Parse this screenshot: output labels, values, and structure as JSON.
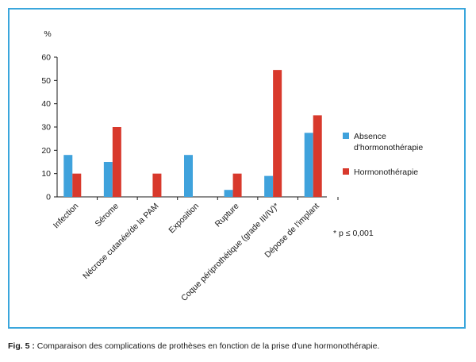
{
  "chart_data": {
    "type": "bar",
    "ylabel": "%",
    "ylim": [
      0,
      60
    ],
    "yticks": [
      0,
      10,
      20,
      30,
      40,
      50,
      60
    ],
    "categories": [
      "Infection",
      "Sérome",
      "Nécrose cutanée/de la PAM",
      "Exposition",
      "Rupture",
      "Coque périprothétique (grade III/IV)*",
      "Dépose de l'implant"
    ],
    "series": [
      {
        "name": "Absence d'hormonothérapie",
        "name_lines": [
          "Absence",
          "d'hormonothérapie"
        ],
        "color": "#3fa2dc",
        "values": [
          18,
          15,
          0,
          18,
          3,
          9,
          27.5
        ]
      },
      {
        "name": "Hormonothérapie",
        "name_lines": [
          "Hormonothérapie"
        ],
        "color": "#d8392c",
        "values": [
          10,
          30,
          10,
          0,
          10,
          54.5,
          35
        ]
      }
    ],
    "legend_position": "right",
    "annotation": "* p ≤ 0,001",
    "grid": false
  },
  "caption": {
    "label": "Fig. 5 :",
    "text": " Comparaison des complications de prothèses en fonction de la prise d'une hormonothérapie."
  },
  "colors": {
    "frame": "#3aa6dc",
    "axis": "#1a1a1a"
  }
}
